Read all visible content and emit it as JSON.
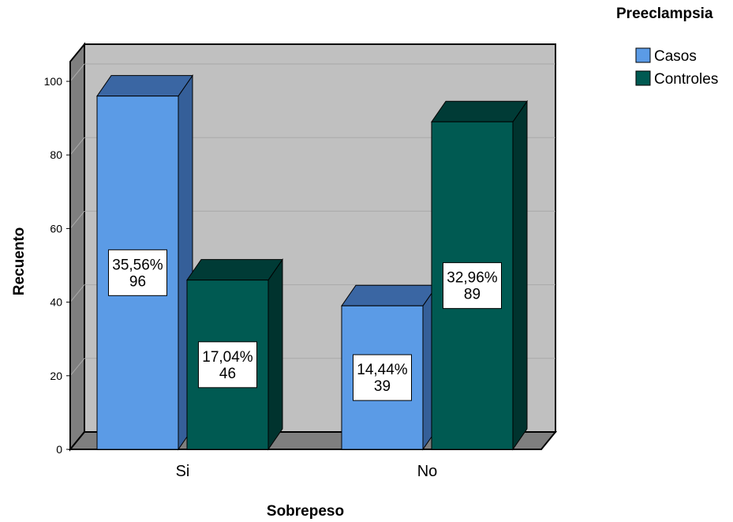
{
  "chart_data": {
    "type": "bar",
    "title": "",
    "xlabel": "Sobrepeso",
    "ylabel": "Recuento",
    "categories": [
      "Si",
      "No"
    ],
    "ylim": [
      0,
      100
    ],
    "yticks": [
      0,
      20,
      40,
      60,
      80,
      100
    ],
    "grid": true,
    "legend": {
      "title": "Preeclampsia",
      "placement": "top-right",
      "entries": [
        "Casos",
        "Controles"
      ]
    },
    "series": [
      {
        "name": "Casos",
        "values": [
          96,
          39
        ],
        "percent_labels": [
          "35,56%",
          "14,44%"
        ],
        "color": "#5b9be6",
        "side_color": "#355f99",
        "top_color": "#3a66a3"
      },
      {
        "name": "Controles",
        "values": [
          46,
          89
        ],
        "percent_labels": [
          "17,04%",
          "32,96%"
        ],
        "color": "#005a52",
        "side_color": "#00332e",
        "top_color": "#003b36"
      }
    ],
    "colors": {
      "plot_back": "#c0c0c0",
      "plot_side": "#7f7f7f",
      "plot_floor": "#7f7f7f",
      "gridline": "#a9a9a9"
    }
  }
}
